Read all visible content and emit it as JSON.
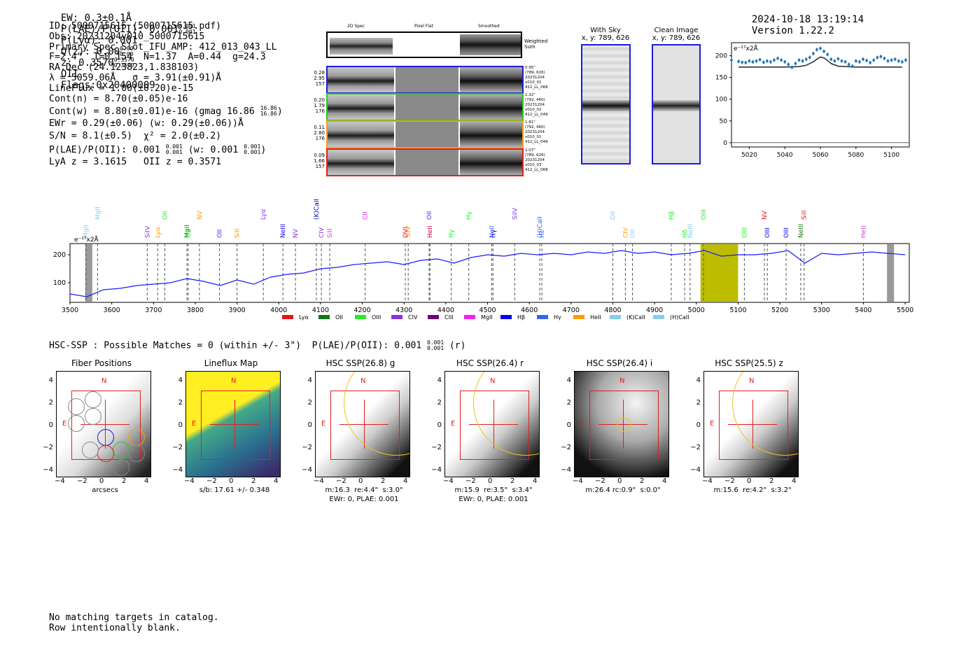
{
  "header": {
    "ew": "EW: 0.3±0.1Å",
    "plae_label": "P(LAE)/P(OII): 0.001",
    "plae_hi": "0.001",
    "plae_lo": "0.001",
    "plya": "P(Lyα): 0.001",
    "qz_label": "Q(z): 0.00",
    "qz_hi": "0.00",
    "qz_lo": "0.00",
    "z_label": "z: 0.3570",
    "z_hi": "0.3570",
    "z_lo": "0.3570",
    "z_line": "OII",
    "flags": "Flags:0x20400009",
    "timestamp": "2024-10-18 13:19:14",
    "version": "Version 1.22.2"
  },
  "info": {
    "id": "ID: 5000715615 (5000715615.pdf)",
    "obs": "Obs: 20231204v010_5000715615",
    "primary": "Primary Spec_Slot_IFU_AMP: 412_013_043_LL",
    "params": "F=2.4\"  T=0.154  N=1.37  A=0.44  g=24.3",
    "radec": "RA,Dec (24.123823,1.838103)",
    "lambda": "λ = 5059.06Å   σ = 3.91(±0.91)Å",
    "lineflux": "LineFlux = 1.00(±0.20)e-15",
    "contn": "Cont(n) = 8.70(±0.05)e-16",
    "contw": "Cont(w) = 8.80(±0.01)e-16 (gmag 16.86",
    "gmag_hi": "16.86",
    "gmag_lo": "16.86",
    "ewr": "EWr = 0.29(±0.06) (w: 0.29(±0.06))Å",
    "sn": "S/N = 8.1(±0.5)  χ² = 2.0(±0.2)",
    "plae": "P(LAE)/P(OII): 0.001",
    "plae_hi": "0.001",
    "plae_lo": "0.001",
    "plae_w": "(w: 0.001",
    "plae_w_hi": "0.001",
    "plae_w_lo": "0.001",
    "lyaz": "LyA z = 3.1615   OII z = 0.3571"
  },
  "spec2d": {
    "col_titles": [
      "2D Spec",
      "Pixel Flat",
      "Smoothed"
    ],
    "weighted_sum_label": "Weighted Sum",
    "rows": [
      {
        "color": "#1f1fd0",
        "stats": [
          "0.28",
          "2.95",
          "157"
        ],
        "notes": [
          "0.95\"",
          "(789, 626)",
          "20231204",
          "v010_01",
          "412_LL_068"
        ]
      },
      {
        "color": "#22cc22",
        "stats": [
          "0.20",
          "1.79",
          "176"
        ],
        "notes": [
          "1.32\"",
          "(792, 460)",
          "20231204",
          "v010_02",
          "412_LL_049"
        ]
      },
      {
        "color": "#f0a020",
        "stats": [
          "0.11",
          "2.80",
          "176"
        ],
        "notes": [
          "1.81\"",
          "(792, 460)",
          "20231204",
          "v010_01",
          "412_LL_049"
        ]
      },
      {
        "color": "#e02020",
        "stats": [
          "0.09",
          "1.66",
          "157"
        ],
        "notes": [
          "2.07\"",
          "(789, 626)",
          "20231204",
          "v010_03",
          "412_LL_068"
        ]
      }
    ]
  },
  "sky": {
    "with_sky_title": "With Sky",
    "with_sky_coords": "x, y: 789, 626",
    "clean_title": "Clean Image",
    "clean_coords": "x, y: 789, 626"
  },
  "zoom_plot": {
    "unit": "e⁻¹⁷x2Å",
    "yticks": [
      "0",
      "50",
      "100",
      "150",
      "200"
    ],
    "xticks": [
      "5020",
      "5040",
      "5060",
      "5080",
      "5100"
    ]
  },
  "full_spectrum": {
    "unit": "e⁻¹⁷x2Å",
    "yticks": [
      "100",
      "200"
    ],
    "xticks": [
      "3500",
      "3600",
      "3700",
      "3800",
      "3900",
      "4000",
      "4100",
      "4200",
      "4300",
      "4400",
      "4500",
      "4600",
      "4700",
      "4800",
      "4900",
      "5000",
      "5100",
      "5200",
      "5300",
      "5400",
      "5500"
    ],
    "legend": [
      {
        "label": "Lyα",
        "color": "#ee1111"
      },
      {
        "label": "OII",
        "color": "#117711"
      },
      {
        "label": "OIII",
        "color": "#22ee22"
      },
      {
        "label": "CIV",
        "color": "#8833dd"
      },
      {
        "label": "CIII",
        "color": "#770077"
      },
      {
        "label": "MgII",
        "color": "#ee22ee"
      },
      {
        "label": "Hβ",
        "color": "#0000ee"
      },
      {
        "label": "Hγ",
        "color": "#3366ee"
      },
      {
        "label": "HeII",
        "color": "#ff9900"
      },
      {
        "label": "(K)CaII",
        "color": "#88ccee"
      },
      {
        "label": "(H)CaII",
        "color": "#88ccee"
      }
    ],
    "lines": [
      {
        "label": "MgII",
        "color": "#88ccee",
        "wave": 3538
      },
      {
        "label": "MgII",
        "color": "#88ccee",
        "wave": 3566
      },
      {
        "label": "SiIV",
        "color": "#8833dd",
        "wave": 3685
      },
      {
        "label": "Lyα",
        "color": "#ff9900",
        "wave": 3710
      },
      {
        "label": "OII",
        "color": "#22ee22",
        "wave": 3727
      },
      {
        "label": "MgII",
        "color": "#117711",
        "wave": 3780
      },
      {
        "label": "OII",
        "color": "#22ee22",
        "wave": 3783
      },
      {
        "label": "NV",
        "color": "#ff9900",
        "wave": 3810
      },
      {
        "label": "OII",
        "color": "#3333ee",
        "wave": 3858
      },
      {
        "label": "SiII",
        "color": "#ff9900",
        "wave": 3900
      },
      {
        "label": "Lyα",
        "color": "#8833dd",
        "wave": 3963
      },
      {
        "label": "NeIII",
        "color": "#0000ee",
        "wave": 4010
      },
      {
        "label": "NV",
        "color": "#8833dd",
        "wave": 4040
      },
      {
        "label": "(K)CaII",
        "color": "#0000aa",
        "wave": 4090
      },
      {
        "label": "CIV",
        "color": "#8833dd",
        "wave": 4102
      },
      {
        "label": "SiII",
        "color": "#cc44cc",
        "wave": 4122
      },
      {
        "label": "CII",
        "color": "#ee22ee",
        "wave": 4207
      },
      {
        "label": "SiIV",
        "color": "#ff9900",
        "wave": 4310
      },
      {
        "label": "OVI",
        "color": "#ee1111",
        "wave": 4303
      },
      {
        "label": "OII",
        "color": "#3333ee",
        "wave": 4360
      },
      {
        "label": "HeII",
        "color": "#cc0055",
        "wave": 4362
      },
      {
        "label": "Hγ",
        "color": "#22ee22",
        "wave": 4413
      },
      {
        "label": "Hγ",
        "color": "#22ee22",
        "wave": 4455
      },
      {
        "label": "NeII",
        "color": "#3366ee",
        "wave": 4510
      },
      {
        "label": "Hγ",
        "color": "#0000ee",
        "wave": 4513
      },
      {
        "label": "SiIV",
        "color": "#8833dd",
        "wave": 4565
      },
      {
        "label": "(H)CaII",
        "color": "#3366ee",
        "wave": 4625
      },
      {
        "label": "Hε",
        "color": "#3366ee",
        "wave": 4630
      },
      {
        "label": "OII",
        "color": "#88ccee",
        "wave": 4800
      },
      {
        "label": "CIV",
        "color": "#ff9900",
        "wave": 4830
      },
      {
        "label": "OII",
        "color": "#88ccee",
        "wave": 4847
      },
      {
        "label": "Hβ",
        "color": "#22ee22",
        "wave": 4940
      },
      {
        "label": "Hδ",
        "color": "#22ee22",
        "wave": 4972
      },
      {
        "label": "NeIII",
        "color": "#88ccee",
        "wave": 4985
      },
      {
        "label": "OIII",
        "color": "#22ee22",
        "wave": 5017
      },
      {
        "label": "OIII",
        "color": "#22ee22",
        "wave": 5115
      },
      {
        "label": "OIII",
        "color": "#0000ee",
        "wave": 5170
      },
      {
        "label": "NV",
        "color": "#ee1111",
        "wave": 5163
      },
      {
        "label": "OIII",
        "color": "#0000ee",
        "wave": 5215
      },
      {
        "label": "NeIII",
        "color": "#117711",
        "wave": 5250
      },
      {
        "label": "SiII",
        "color": "#ee1111",
        "wave": 5258
      },
      {
        "label": "HeII",
        "color": "#cc44cc",
        "wave": 5400
      }
    ]
  },
  "chart_data": [
    {
      "type": "line",
      "xlabel": "",
      "ylabel": "e⁻¹⁷x2Å",
      "xlim": [
        5010,
        5110
      ],
      "ylim": [
        -10,
        230
      ],
      "series": [
        {
          "kind": "points",
          "color": "#1f77b4",
          "x": [
            5010,
            5014,
            5016,
            5018,
            5020,
            5022,
            5024,
            5026,
            5028,
            5030,
            5032,
            5034,
            5036,
            5038,
            5040,
            5042,
            5044,
            5046,
            5048,
            5050,
            5052,
            5054,
            5056,
            5058,
            5060,
            5062,
            5064,
            5066,
            5068,
            5070,
            5072,
            5074,
            5076,
            5078,
            5080,
            5082,
            5084,
            5086,
            5088,
            5090,
            5092,
            5094,
            5096,
            5098,
            5100,
            5102,
            5104,
            5106,
            5108
          ],
          "y": [
            190,
            187,
            185,
            184,
            188,
            186,
            188,
            191,
            185,
            188,
            186,
            190,
            194,
            190,
            186,
            180,
            173,
            182,
            190,
            188,
            192,
            196,
            205,
            214,
            217,
            210,
            203,
            192,
            188,
            193,
            188,
            186,
            180,
            176,
            188,
            186,
            192,
            189,
            184,
            190,
            196,
            198,
            194,
            188,
            190,
            192,
            188,
            186,
            190
          ]
        },
        {
          "kind": "model",
          "color": "#333333",
          "x": [
            5014,
            5040,
            5048,
            5052,
            5056,
            5058,
            5060,
            5062,
            5064,
            5066,
            5070,
            5080,
            5106
          ],
          "y": [
            174,
            174,
            175,
            178,
            186,
            192,
            197,
            195,
            189,
            182,
            176,
            174,
            174
          ]
        }
      ]
    },
    {
      "type": "line",
      "xlabel": "",
      "ylabel": "e⁻¹⁷x2Å",
      "xlim": [
        3500,
        5510
      ],
      "ylim": [
        30,
        240
      ],
      "series": [
        {
          "color": "#1a1aff",
          "x": [
            3500,
            3540,
            3580,
            3620,
            3660,
            3700,
            3740,
            3780,
            3820,
            3860,
            3900,
            3940,
            3980,
            4020,
            4060,
            4100,
            4140,
            4180,
            4220,
            4260,
            4300,
            4340,
            4380,
            4420,
            4460,
            4500,
            4540,
            4580,
            4620,
            4660,
            4700,
            4740,
            4780,
            4820,
            4860,
            4900,
            4940,
            4980,
            5020,
            5060,
            5100,
            5140,
            5180,
            5220,
            5260,
            5300,
            5340,
            5380,
            5420,
            5460,
            5500
          ],
          "y": [
            60,
            50,
            75,
            80,
            90,
            95,
            100,
            115,
            105,
            90,
            110,
            95,
            120,
            130,
            135,
            150,
            155,
            165,
            170,
            175,
            165,
            180,
            185,
            170,
            190,
            200,
            195,
            205,
            200,
            205,
            200,
            210,
            205,
            215,
            205,
            210,
            200,
            205,
            215,
            195,
            200,
            200,
            205,
            215,
            170,
            205,
            200,
            205,
            210,
            205,
            200
          ]
        }
      ],
      "highlight": [
        5010,
        5100
      ]
    }
  ],
  "hsc": {
    "summary": "HSC-SSP : Possible Matches = 0 (within +/- 3\")  P(LAE)/P(OII): 0.001",
    "summary_hi": "0.001",
    "summary_lo": "0.001",
    "summary_tail": "(r)",
    "panels": [
      {
        "title": "Fiber Positions",
        "caption1": "arcsecs",
        "caption2": ""
      },
      {
        "title": "Lineflux Map",
        "caption1": "s/b: 17.61 +/- 0.348",
        "caption2": ""
      },
      {
        "title": "HSC SSP(26.8) g",
        "caption1": "m:16.3  re:4.4\"  s:3.0\"",
        "caption2": "EWr: 0, PLAE: 0.001"
      },
      {
        "title": "HSC SSP(26.4) r",
        "caption1": "m:15.9  re:3.5\"  s:3.4\"",
        "caption2": "EWr: 0, PLAE: 0.001"
      },
      {
        "title": "HSC SSP(26.4) i",
        "caption1": "m:26.4 rc:0.9\"  s:0.0\"",
        "caption2": ""
      },
      {
        "title": "HSC SSP(25.5) z",
        "caption1": "m:15.6  re:4.2\"  s:3.2\"",
        "caption2": ""
      }
    ],
    "ticks": [
      "−4",
      "−2",
      "0",
      "2",
      "4"
    ],
    "north": "N",
    "east": "E"
  },
  "footer": {
    "line1": "No matching targets in catalog.",
    "line2": "Row intentionally blank."
  }
}
